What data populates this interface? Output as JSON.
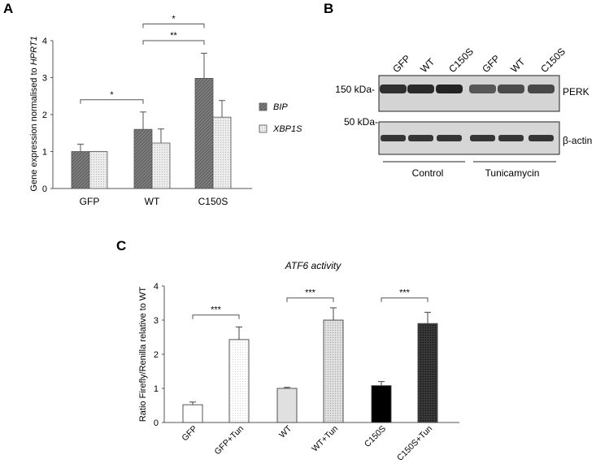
{
  "panels": {
    "A": {
      "letter": "A"
    },
    "B": {
      "letter": "B"
    },
    "C": {
      "letter": "C"
    }
  },
  "chart_data": [
    {
      "panel": "A",
      "type": "bar",
      "ylabel_prefix": "Gene expression normalised to ",
      "ylabel_gene": "HPRT1",
      "ylim": [
        0,
        4
      ],
      "yticks": [
        "0",
        "1",
        "2",
        "3",
        "4"
      ],
      "categories": [
        "GFP",
        "WT",
        "C150S"
      ],
      "series": [
        {
          "name": "BIP",
          "values": [
            1.0,
            1.6,
            2.98
          ],
          "errors": [
            0.2,
            0.47,
            0.68
          ],
          "fill": "#7f7f7f",
          "pattern": "hatch-dark"
        },
        {
          "name": "XBP1S",
          "values": [
            1.0,
            1.23,
            1.93
          ],
          "errors": [
            0.0,
            0.38,
            0.45
          ],
          "fill": "#e8e8e8",
          "pattern": "dots-light"
        }
      ],
      "significance": [
        {
          "label": "*",
          "from": "GFP",
          "to": "WT",
          "y": 2.4
        },
        {
          "label": "**",
          "from": "WT",
          "to": "C150S",
          "y": 4.0
        },
        {
          "label": "*",
          "from": "WT",
          "to": "C150S",
          "y": 4.45
        }
      ],
      "legend": [
        "BIP",
        "XBP1S"
      ],
      "legend_position": "right"
    },
    {
      "panel": "C",
      "type": "bar",
      "title": "ATF6 activity",
      "ylabel": "Ratio Firefly/Renilla relative to WT",
      "ylim": [
        0,
        4
      ],
      "yticks": [
        "0",
        "1",
        "2",
        "3",
        "4"
      ],
      "categories": [
        "GFP",
        "GFP+Tun",
        "WT",
        "WT+Tun",
        "C150S",
        "C150S+Tun"
      ],
      "values": [
        0.52,
        2.43,
        1.0,
        3.0,
        1.08,
        2.9
      ],
      "errors": [
        0.08,
        0.37,
        0.03,
        0.36,
        0.12,
        0.33
      ],
      "styles": [
        "white",
        "dots-white",
        "lightgrey",
        "dots-grey",
        "black",
        "dots-black"
      ],
      "significance": [
        {
          "label": "***",
          "from": "GFP",
          "to": "GFP+Tun",
          "y": 3.15
        },
        {
          "label": "***",
          "from": "WT",
          "to": "WT+Tun",
          "y": 3.65
        },
        {
          "label": "***",
          "from": "C150S",
          "to": "C150S+Tun",
          "y": 3.65
        }
      ]
    }
  ],
  "blot": {
    "lanes": [
      "GFP",
      "WT",
      "C150S",
      "GFP",
      "WT",
      "C150S"
    ],
    "markers": [
      "150 kDa-",
      "50 kDa-"
    ],
    "bands": [
      "PERK",
      "β-actin"
    ],
    "perk_intensity": [
      0.9,
      0.95,
      1.0,
      0.6,
      0.68,
      0.72
    ],
    "actin_intensity": [
      0.85,
      0.85,
      0.85,
      0.85,
      0.85,
      0.85
    ],
    "groups": [
      "Control",
      "Tunicamycin"
    ]
  }
}
